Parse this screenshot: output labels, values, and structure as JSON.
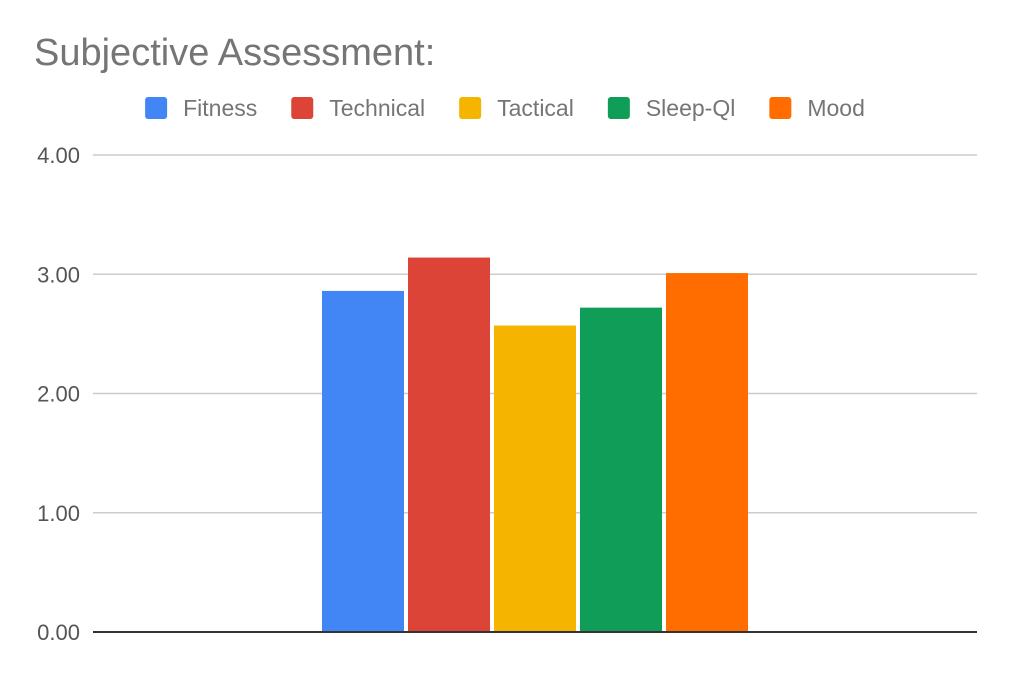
{
  "chart_data": {
    "type": "bar",
    "title": "Subjective Assessment:",
    "xlabel": "",
    "ylabel": "",
    "categories": [
      ""
    ],
    "series": [
      {
        "name": "Fitness",
        "values": [
          2.86
        ],
        "color": "#4285F4"
      },
      {
        "name": "Technical",
        "values": [
          3.14
        ],
        "color": "#DB4437"
      },
      {
        "name": "Tactical",
        "values": [
          2.57
        ],
        "color": "#F4B400"
      },
      {
        "name": "Sleep-Ql",
        "values": [
          2.72
        ],
        "color": "#0F9D58"
      },
      {
        "name": "Mood",
        "values": [
          3.01
        ],
        "color": "#FF6D00"
      }
    ],
    "ylim": [
      0,
      4
    ],
    "yticks": [
      0,
      1,
      2,
      3,
      4
    ],
    "ytick_labels": [
      "0.00",
      "1.00",
      "2.00",
      "3.00",
      "4.00"
    ],
    "grid": true,
    "legend_position": "top"
  }
}
